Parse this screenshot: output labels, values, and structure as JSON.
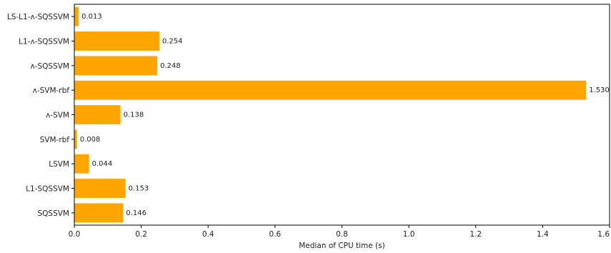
{
  "chart_data": {
    "type": "bar",
    "orientation": "horizontal",
    "title": "",
    "xlabel": "Median of CPU time (s)",
    "ylabel": "",
    "xlim": [
      0,
      1.6
    ],
    "xticks": [
      0.0,
      0.2,
      0.4,
      0.6,
      0.8,
      1.0,
      1.2,
      1.4,
      1.6
    ],
    "xtick_labels": [
      "0.0",
      "0.2",
      "0.4",
      "0.6",
      "0.8",
      "1.0",
      "1.2",
      "1.4",
      "1.6"
    ],
    "categories": [
      "LS-L1-ʌ-SQSSVM",
      "L1-ʌ-SQSSVM",
      "ʌ-SQSSVM",
      "ʌ-SVM-rbf",
      "ʌ-SVM",
      "SVM-rbf",
      "LSVM",
      "L1-SQSSVM",
      "SQSSVM"
    ],
    "values": [
      0.013,
      0.254,
      0.248,
      1.53,
      0.138,
      0.008,
      0.044,
      0.153,
      0.146
    ],
    "value_labels": [
      "0.013",
      "0.254",
      "0.248",
      "1.530",
      "0.138",
      "0.008",
      "0.044",
      "0.153",
      "0.146"
    ],
    "bar_color": "#ffa500",
    "grid": false,
    "legend": "none"
  }
}
